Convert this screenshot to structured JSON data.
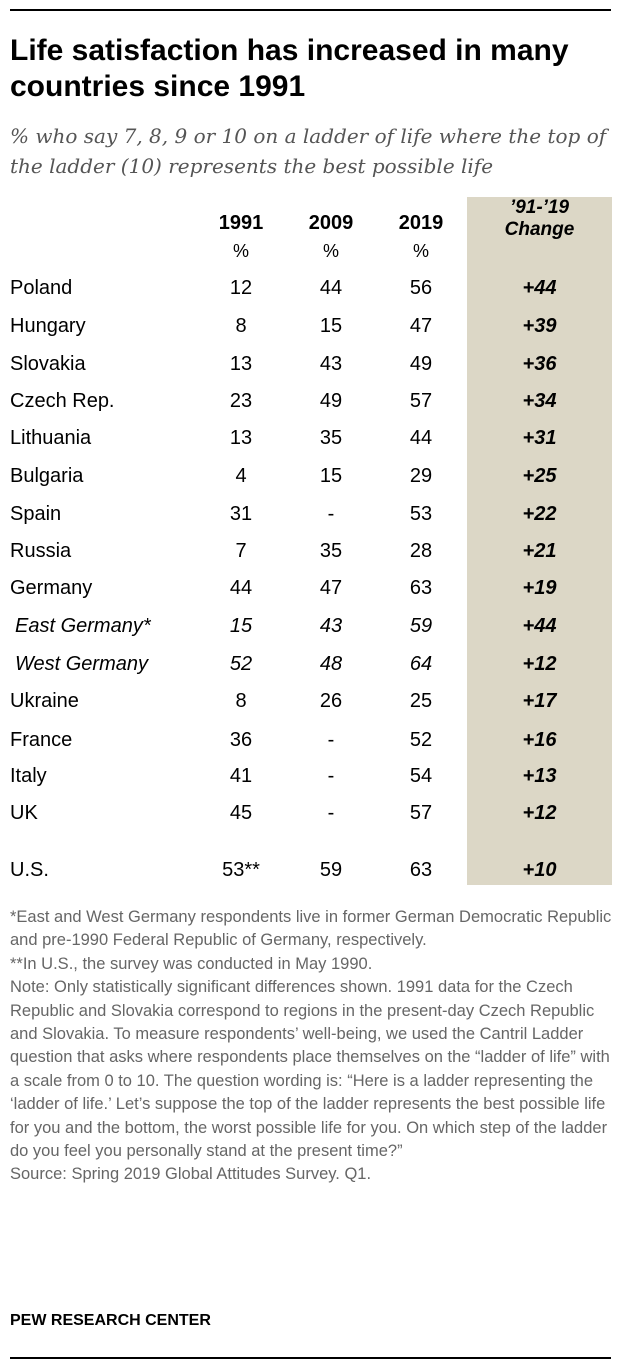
{
  "title": "Life satisfaction has increased in many countries since 1991",
  "subtitle": "% who say 7, 8, 9 or 10 on a ladder of life where the top of the ladder (10) represents the best possible life",
  "chart_data": {
    "type": "table",
    "columns": [
      "1991",
      "2009",
      "2019",
      "'91-'19 Change"
    ],
    "column_unit": "%",
    "change_header_line1": "’91-’19",
    "change_header_line2": "Change",
    "rows": [
      {
        "country": "Poland",
        "y1991": "12",
        "y2009": "44",
        "y2019": "56",
        "change": "+44"
      },
      {
        "country": "Hungary",
        "y1991": "8",
        "y2009": "15",
        "y2019": "47",
        "change": "+39"
      },
      {
        "country": "Slovakia",
        "y1991": "13",
        "y2009": "43",
        "y2019": "49",
        "change": "+36"
      },
      {
        "country": "Czech Rep.",
        "y1991": "23",
        "y2009": "49",
        "y2019": "57",
        "change": "+34"
      },
      {
        "country": "Lithuania",
        "y1991": "13",
        "y2009": "35",
        "y2019": "44",
        "change": "+31"
      },
      {
        "country": "Bulgaria",
        "y1991": "4",
        "y2009": "15",
        "y2019": "29",
        "change": "+25"
      },
      {
        "country": "Spain",
        "y1991": "31",
        "y2009": "-",
        "y2019": "53",
        "change": "+22"
      },
      {
        "country": "Russia",
        "y1991": "7",
        "y2009": "35",
        "y2019": "28",
        "change": "+21"
      },
      {
        "country": "Germany",
        "y1991": "44",
        "y2009": "47",
        "y2019": "63",
        "change": "+19"
      },
      {
        "country": "East Germany*",
        "y1991": "15",
        "y2009": "43",
        "y2019": "59",
        "change": "+44",
        "sub": true
      },
      {
        "country": "West Germany",
        "y1991": "52",
        "y2009": "48",
        "y2019": "64",
        "change": "+12",
        "sub": true
      },
      {
        "country": "Ukraine",
        "y1991": "8",
        "y2009": "26",
        "y2019": "25",
        "change": "+17"
      },
      {
        "country": "France",
        "y1991": "36",
        "y2009": "-",
        "y2019": "52",
        "change": "+16"
      },
      {
        "country": "Italy",
        "y1991": "41",
        "y2009": "-",
        "y2019": "54",
        "change": "+13"
      },
      {
        "country": "UK",
        "y1991": "45",
        "y2009": "-",
        "y2019": "57",
        "change": "+12"
      },
      {
        "country": "U.S.",
        "y1991": "53**",
        "y2009": "59",
        "y2019": "63",
        "change": "+10"
      }
    ]
  },
  "notes": {
    "footnote1": "*East and West Germany respondents live in former German Democratic Republic and pre-1990 Federal Republic of Germany, respectively.",
    "footnote2": "**In U.S., the survey was conducted in May 1990.",
    "note": "Note: Only statistically significant differences shown. 1991 data for the Czech Republic and Slovakia correspond to regions in the present-day Czech Republic and Slovakia. To measure respondents’ well-being, we used the Cantril Ladder question that asks where respondents place themselves on the “ladder of life” with a scale from 0 to 10. The question wording is: “Here is a ladder representing the ‘ladder of life.’ Let’s suppose the top of the ladder represents the best possible life for you and the bottom, the worst possible life for you. On which step of the ladder do you feel you personally stand at the present time?”",
    "source": "Source: Spring 2019 Global Attitudes Survey. Q1."
  },
  "organization": "PEW RESEARCH CENTER"
}
